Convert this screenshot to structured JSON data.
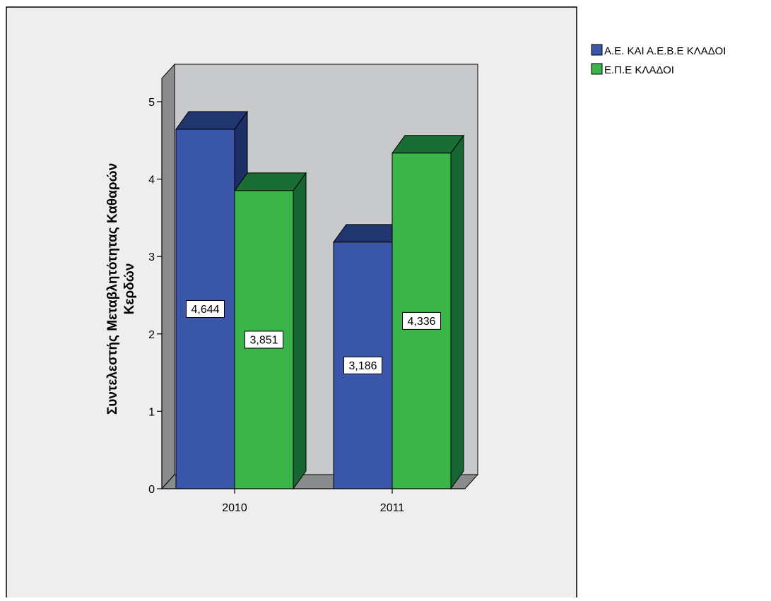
{
  "chart_data": {
    "type": "bar",
    "title": "",
    "xlabel": "",
    "ylabel_lines": [
      "Συντελεστής Μεταβλητότητας Καθαρών",
      "Κερδών"
    ],
    "categories": [
      "2010",
      "2011"
    ],
    "series": [
      {
        "name": "Α.Ε. ΚΑΙ Α.Ε.Β.Ε ΚΛΑΔΟΙ",
        "values": [
          4.644,
          3.186
        ],
        "labels": [
          "4,644",
          "3,186"
        ],
        "color": "#3a56a8",
        "top_color": "#21356e",
        "side_color": "#1c2f66"
      },
      {
        "name": "Ε.Π.Ε ΚΛΑΔΟΙ",
        "values": [
          3.851,
          4.336
        ],
        "labels": [
          "3,851",
          "4,336"
        ],
        "color": "#3bb54a",
        "top_color": "#1a6e35",
        "side_color": "#176533"
      }
    ],
    "ylim": [
      0,
      5
    ],
    "yticks": [
      "0",
      "1",
      "2",
      "3",
      "4",
      "5"
    ],
    "grid": false,
    "legend_position": "top-right",
    "style": {
      "background": "#eeeeee",
      "plot_wall": "#c8c9cb",
      "plot_wall_side": "#8a8b8d",
      "axis_color": "#000000"
    }
  }
}
